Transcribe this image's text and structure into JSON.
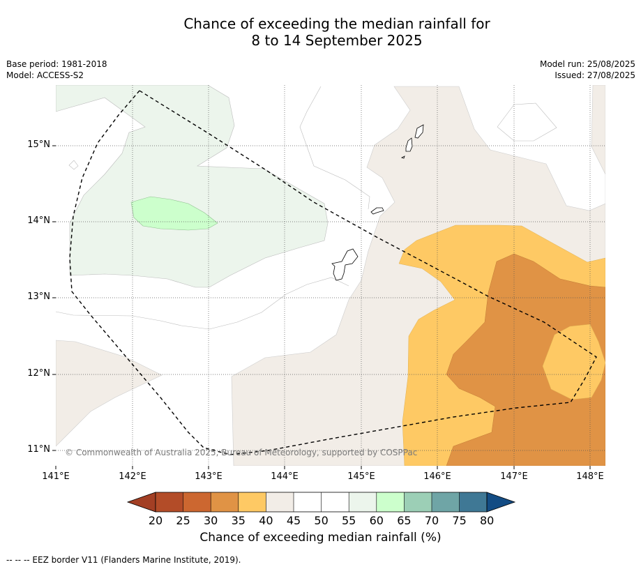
{
  "title_line1": "Chance of exceeding the median rainfall for",
  "title_line2": "8 to 14 September 2025",
  "base_period": "Base period: 1981-2018",
  "model": "Model: ACCESS-S2",
  "model_run": "Model run: 25/08/2025",
  "issued": "Issued: 27/08/2025",
  "lat_labels": [
    "15°N",
    "14°N",
    "13°N",
    "12°N",
    "11°N"
  ],
  "lon_labels": [
    "141°E",
    "142°E",
    "143°E",
    "144°E",
    "145°E",
    "146°E",
    "147°E",
    "148°E"
  ],
  "copyright": "© Commonwealth of Australia 2025, Bureau of Meteorology, supported by COSPPac",
  "colorbar": {
    "title": "Chance of exceeding median rainfall (%)",
    "ticks": [
      "20",
      "25",
      "30",
      "35",
      "40",
      "45",
      "50",
      "55",
      "60",
      "65",
      "70",
      "75",
      "80"
    ],
    "colors": [
      "#b34c28",
      "#cc6730",
      "#e09345",
      "#fec964",
      "#f2ede7",
      "#ffffff",
      "#ffffff",
      "#ecf5ec",
      "#ccffcc",
      "#9ccfb6",
      "#6fa5a6",
      "#3f7895"
    ],
    "under_color": "#a33f24",
    "over_color": "#134c84"
  },
  "footnote": "-- -- -- EEZ border V11 (Flanders Marine Institute, 2019)."
}
